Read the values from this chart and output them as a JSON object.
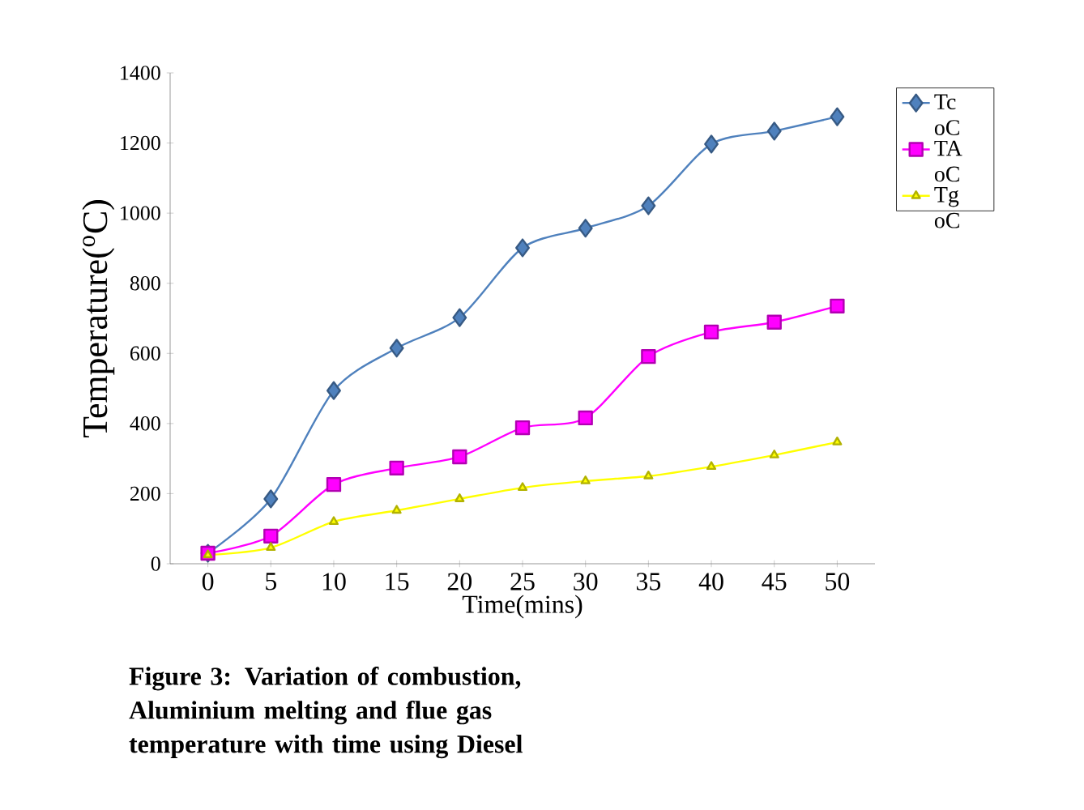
{
  "chart_data": {
    "type": "line",
    "title": "Figure 3: Variation of combustion, Aluminium melting and flue gas temperature with time using Diesel",
    "xlabel": "Time(mins)",
    "ylabel": "Temperature($^{o}$C)",
    "x": [
      0,
      5,
      10,
      15,
      20,
      25,
      30,
      35,
      40,
      45,
      50
    ],
    "series": [
      {
        "name": "Tc oC",
        "color": "#4f81bd",
        "marker": "diamond",
        "values": [
          30,
          185,
          494,
          615,
          702,
          901,
          957,
          1021,
          1197,
          1234,
          1275
        ]
      },
      {
        "name": "TA oC",
        "color": "#ff00ff",
        "marker": "square",
        "values": [
          30,
          79,
          226,
          273,
          305,
          388,
          416,
          591,
          661,
          689,
          735
        ]
      },
      {
        "name": "Tg oC",
        "color": "#ffff00",
        "marker": "triangle",
        "values": [
          25,
          46,
          120,
          152,
          185,
          217,
          236,
          250,
          277,
          310,
          347
        ]
      }
    ],
    "xlim": [
      -3,
      53
    ],
    "xticks": [
      0,
      5,
      10,
      15,
      20,
      25,
      30,
      35,
      40,
      45,
      50
    ],
    "ylim": [
      0,
      1400
    ],
    "yticks": [
      0,
      200,
      400,
      600,
      800,
      1000,
      1200,
      1400
    ],
    "grid": false,
    "legend": "right",
    "line_style": "solid"
  }
}
